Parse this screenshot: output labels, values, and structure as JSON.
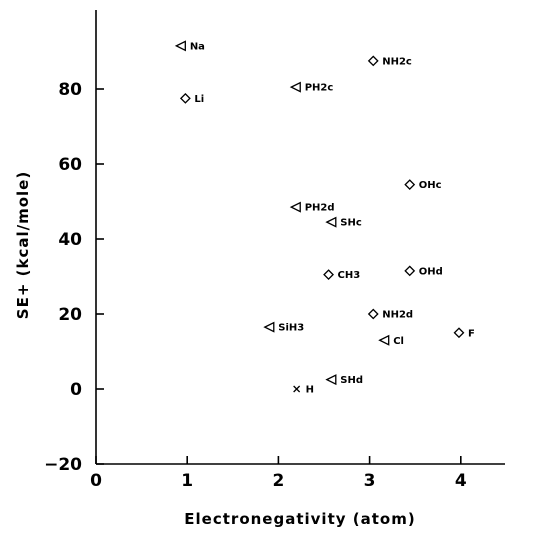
{
  "chart_data": {
    "type": "scatter",
    "title": "",
    "xlabel": "Electronegativity  (atom)",
    "ylabel": "SE+   (kcal/mole)",
    "xlim": [
      0,
      5
    ],
    "ylim": [
      -20,
      100
    ],
    "x_ticks": [
      0,
      1,
      2,
      3,
      4
    ],
    "y_ticks": [
      -20,
      0,
      20,
      40,
      60,
      80
    ],
    "x_tick_labels": [
      "0",
      "1",
      "2",
      "3",
      "4"
    ],
    "y_tick_labels": [
      "-20",
      "0",
      "20",
      "40",
      "60",
      "80"
    ],
    "grid": false,
    "legend": "none",
    "points": [
      {
        "label": "Na",
        "x": 0.93,
        "y": 91.5,
        "marker": "triangle-left"
      },
      {
        "label": "Li",
        "x": 0.98,
        "y": 77.5,
        "marker": "diamond"
      },
      {
        "label": "NH2c",
        "x": 3.04,
        "y": 87.5,
        "marker": "diamond"
      },
      {
        "label": "PH2c",
        "x": 2.19,
        "y": 80.5,
        "marker": "triangle-left"
      },
      {
        "label": "OHc",
        "x": 3.44,
        "y": 54.5,
        "marker": "diamond"
      },
      {
        "label": "PH2d",
        "x": 2.19,
        "y": 48.5,
        "marker": "triangle-left"
      },
      {
        "label": "SHc",
        "x": 2.58,
        "y": 44.5,
        "marker": "triangle-left"
      },
      {
        "label": "CH3",
        "x": 2.55,
        "y": 30.5,
        "marker": "diamond"
      },
      {
        "label": "OHd",
        "x": 3.44,
        "y": 31.5,
        "marker": "diamond"
      },
      {
        "label": "NH2d",
        "x": 3.04,
        "y": 20.0,
        "marker": "diamond"
      },
      {
        "label": "SiH3",
        "x": 1.9,
        "y": 16.5,
        "marker": "triangle-left"
      },
      {
        "label": "Cl",
        "x": 3.16,
        "y": 13.0,
        "marker": "triangle-left"
      },
      {
        "label": "F",
        "x": 3.98,
        "y": 15.0,
        "marker": "diamond"
      },
      {
        "label": "SHd",
        "x": 2.58,
        "y": 2.5,
        "marker": "triangle-left"
      },
      {
        "label": "H",
        "x": 2.2,
        "y": 0.0,
        "marker": "x"
      }
    ]
  },
  "display_labels": {
    "Na": "Na",
    "Li": "Li",
    "NH2c": "NH2c",
    "PH2c": "PH2c",
    "OHc": "OHc",
    "PH2d": "PH2d",
    "SHc": "SHc",
    "CH3": "CH3",
    "OHd": "OHd",
    "NH2d": "NH2d",
    "SiH3": "SiH3",
    "Cl": "Cl",
    "F": "F",
    "SHd": "SHd",
    "H": "H"
  }
}
